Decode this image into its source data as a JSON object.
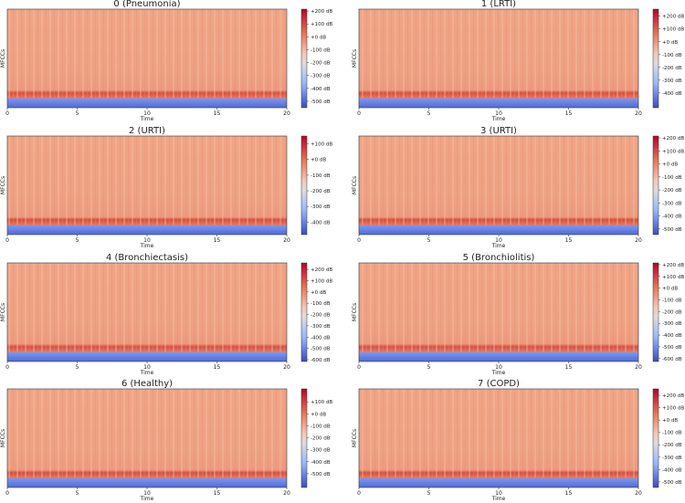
{
  "chart_data": [
    {
      "type": "heatmap",
      "title": "0 (Pneumonia)",
      "xlabel": "Time",
      "ylabel": "MFCCs",
      "xlim": [
        0,
        20
      ],
      "xticks": [
        0,
        5,
        10,
        15,
        20
      ],
      "clim": [
        -550,
        215
      ],
      "cticks": [
        {
          "value": 200,
          "label": "+200 dB"
        },
        {
          "value": 100,
          "label": "+100 dB"
        },
        {
          "value": 0,
          "label": "+0 dB"
        },
        {
          "value": -100,
          "label": "-100 dB"
        },
        {
          "value": -200,
          "label": "-200 dB"
        },
        {
          "value": -300,
          "label": "-300 dB"
        },
        {
          "value": -400,
          "label": "-400 dB"
        },
        {
          "value": -500,
          "label": "-500 dB"
        }
      ]
    },
    {
      "type": "heatmap",
      "title": "1 (LRTI)",
      "xlabel": "Time",
      "ylabel": "MFCCs",
      "xlim": [
        0,
        20
      ],
      "xticks": [
        0,
        5,
        10,
        15,
        20
      ],
      "clim": [
        -515,
        255
      ],
      "cticks": [
        {
          "value": 200,
          "label": "+200 dB"
        },
        {
          "value": 100,
          "label": "+100 dB"
        },
        {
          "value": 0,
          "label": "+0 dB"
        },
        {
          "value": -100,
          "label": "-100 dB"
        },
        {
          "value": -200,
          "label": "-200 dB"
        },
        {
          "value": -300,
          "label": "-300 dB"
        },
        {
          "value": -400,
          "label": "-400 dB"
        }
      ]
    },
    {
      "type": "heatmap",
      "title": "2 (URTI)",
      "xlabel": "Time",
      "ylabel": "MFCCs",
      "xlim": [
        0,
        20
      ],
      "xticks": [
        0,
        5,
        10,
        15,
        20
      ],
      "clim": [
        -480,
        150
      ],
      "cticks": [
        {
          "value": 100,
          "label": "+100 dB"
        },
        {
          "value": 0,
          "label": "+0 dB"
        },
        {
          "value": -100,
          "label": "-100 dB"
        },
        {
          "value": -200,
          "label": "-200 dB"
        },
        {
          "value": -300,
          "label": "-300 dB"
        },
        {
          "value": -400,
          "label": "-400 dB"
        }
      ]
    },
    {
      "type": "heatmap",
      "title": "3 (URTI)",
      "xlabel": "Time",
      "ylabel": "MFCCs",
      "xlim": [
        0,
        20
      ],
      "xticks": [
        0,
        5,
        10,
        15,
        20
      ],
      "clim": [
        -543,
        214
      ],
      "cticks": [
        {
          "value": 200,
          "label": "+200 dB"
        },
        {
          "value": 100,
          "label": "+100 dB"
        },
        {
          "value": 0,
          "label": "+0 dB"
        },
        {
          "value": -100,
          "label": "-100 dB"
        },
        {
          "value": -200,
          "label": "-200 dB"
        },
        {
          "value": -300,
          "label": "-300 dB"
        },
        {
          "value": -400,
          "label": "-400 dB"
        },
        {
          "value": -500,
          "label": "-500 dB"
        }
      ]
    },
    {
      "type": "heatmap",
      "title": "4 (Bronchiectasis)",
      "xlabel": "Time",
      "ylabel": "MFCCs",
      "xlim": [
        0,
        20
      ],
      "xticks": [
        0,
        5,
        10,
        15,
        20
      ],
      "clim": [
        -616,
        257
      ],
      "cticks": [
        {
          "value": 200,
          "label": "+200 dB"
        },
        {
          "value": 100,
          "label": "+100 dB"
        },
        {
          "value": 0,
          "label": "+0 dB"
        },
        {
          "value": -100,
          "label": "-100 dB"
        },
        {
          "value": -200,
          "label": "-200 dB"
        },
        {
          "value": -300,
          "label": "-300 dB"
        },
        {
          "value": -400,
          "label": "-400 dB"
        },
        {
          "value": -500,
          "label": "-500 dB"
        },
        {
          "value": -600,
          "label": "-600 dB"
        }
      ]
    },
    {
      "type": "heatmap",
      "title": "5 (Bronchiolitis)",
      "xlabel": "Time",
      "ylabel": "MFCCs",
      "xlim": [
        0,
        20
      ],
      "xticks": [
        0,
        5,
        10,
        15,
        20
      ],
      "clim": [
        -625,
        215
      ],
      "cticks": [
        {
          "value": 200,
          "label": "+200 dB"
        },
        {
          "value": 100,
          "label": "+100 dB"
        },
        {
          "value": 0,
          "label": "+0 dB"
        },
        {
          "value": -100,
          "label": "-100 dB"
        },
        {
          "value": -200,
          "label": "-200 dB"
        },
        {
          "value": -300,
          "label": "-300 dB"
        },
        {
          "value": -400,
          "label": "-400 dB"
        },
        {
          "value": -500,
          "label": "-500 dB"
        },
        {
          "value": -600,
          "label": "-600 dB"
        }
      ]
    },
    {
      "type": "heatmap",
      "title": "6 (Healthy)",
      "xlabel": "Time",
      "ylabel": "MFCCs",
      "xlim": [
        0,
        20
      ],
      "xticks": [
        0,
        5,
        10,
        15,
        20
      ],
      "clim": [
        -615,
        208
      ],
      "cticks": [
        {
          "value": 100,
          "label": "+100 dB"
        },
        {
          "value": 0,
          "label": "+0 dB"
        },
        {
          "value": -100,
          "label": "-100 dB"
        },
        {
          "value": -200,
          "label": "-200 dB"
        },
        {
          "value": -300,
          "label": "-300 dB"
        },
        {
          "value": -400,
          "label": "-400 dB"
        },
        {
          "value": -500,
          "label": "-500 dB"
        }
      ]
    },
    {
      "type": "heatmap",
      "title": "7 (COPD)",
      "xlabel": "Time",
      "ylabel": "MFCCs",
      "xlim": [
        0,
        20
      ],
      "xticks": [
        0,
        5,
        10,
        15,
        20
      ],
      "clim": [
        -545,
        252
      ],
      "cticks": [
        {
          "value": 200,
          "label": "+200 dB"
        },
        {
          "value": 100,
          "label": "+100 dB"
        },
        {
          "value": 0,
          "label": "+0 dB"
        },
        {
          "value": -100,
          "label": "-100 dB"
        },
        {
          "value": -200,
          "label": "-200 dB"
        },
        {
          "value": -300,
          "label": "-300 dB"
        },
        {
          "value": -400,
          "label": "-400 dB"
        },
        {
          "value": -500,
          "label": "-500 dB"
        }
      ]
    }
  ]
}
